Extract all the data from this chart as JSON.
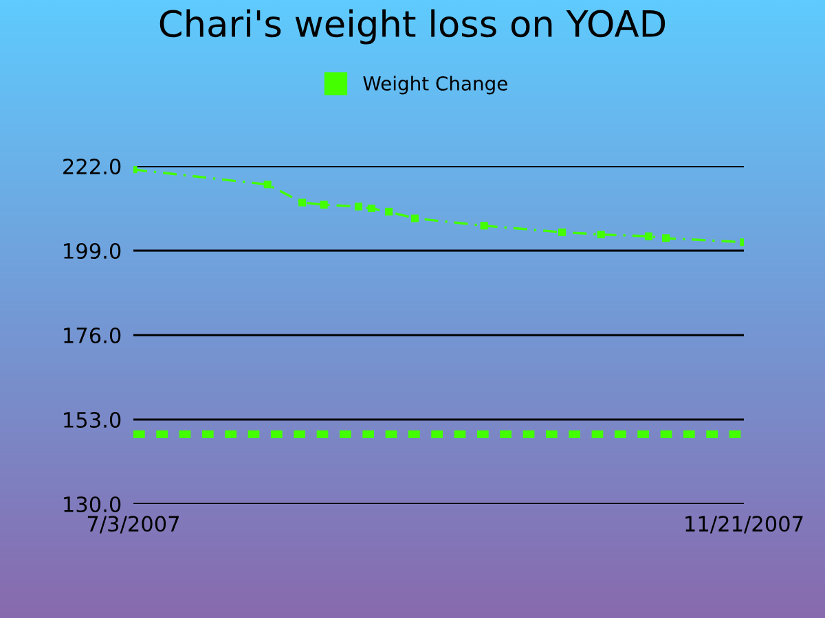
{
  "chart_data": {
    "type": "line",
    "title": "Chari's weight loss on YOAD",
    "x": [
      "2007-07-03",
      "2007-08-03",
      "2007-08-11",
      "2007-08-16",
      "2007-08-24",
      "2007-08-27",
      "2007-08-31",
      "2007-09-06",
      "2007-09-22",
      "2007-10-10",
      "2007-10-19",
      "2007-10-30",
      "2007-11-03",
      "2007-11-21"
    ],
    "series": [
      {
        "name": "Weight Change",
        "color": "#44ff00",
        "values": [
          221.1,
          217.0,
          212.1,
          211.5,
          211.0,
          210.5,
          209.6,
          207.8,
          205.8,
          204.0,
          203.4,
          202.9,
          202.4,
          201.3
        ]
      }
    ],
    "ref_lines": [
      {
        "axis": "y",
        "value": 149,
        "color": "#44ff00",
        "line_style": "dotted"
      }
    ],
    "xlim": [
      "2007-07-03",
      "2007-11-21"
    ],
    "xticks": [
      {
        "value": "2007-07-03",
        "label": "7/3/2007"
      },
      {
        "value": "2007-11-21",
        "label": "11/21/2007"
      }
    ],
    "ylim": [
      130,
      222
    ],
    "yticks": [
      {
        "value": 130,
        "label": "130.0"
      },
      {
        "value": 153,
        "label": "153.0"
      },
      {
        "value": 176,
        "label": "176.0"
      },
      {
        "value": 199,
        "label": "199.0"
      },
      {
        "value": 222,
        "label": "222.0"
      }
    ],
    "grid": "y",
    "legend": "top",
    "marker": "square",
    "line_style": "dashed"
  }
}
